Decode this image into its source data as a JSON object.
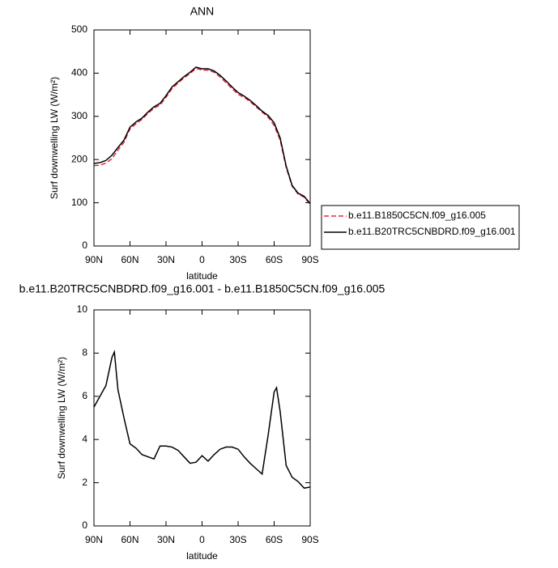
{
  "chart_data": [
    {
      "type": "line",
      "title": "ANN",
      "xlabel": "latitude",
      "ylabel": "Surf downwelling LW (W/m²)",
      "x": [
        90,
        85,
        80,
        75,
        70,
        65,
        60,
        55,
        50,
        45,
        40,
        35,
        30,
        25,
        20,
        15,
        10,
        5,
        0,
        -5,
        -10,
        -15,
        -20,
        -25,
        -30,
        -35,
        -40,
        -45,
        -50,
        -55,
        -60,
        -65,
        -70,
        -75,
        -80,
        -85,
        -90
      ],
      "series": [
        {
          "name": "b.e11.B1850C5CN.f09_g16.005",
          "color": "#e8283c",
          "linestyle": "dashed",
          "values": [
            186,
            187,
            192,
            202,
            222,
            240,
            271,
            283,
            293,
            307,
            319,
            326,
            344,
            364,
            377,
            389,
            399,
            411,
            407,
            407,
            402,
            391,
            378,
            364,
            351,
            344,
            334,
            322,
            310,
            298,
            279,
            245,
            182,
            138,
            120,
            113,
            96
          ]
        },
        {
          "name": "b.e11.B20TRC5CNBDRD.f09_g16.001",
          "color": "#000000",
          "linestyle": "solid",
          "values": [
            191,
            193,
            198,
            210,
            228,
            245,
            275,
            287,
            296,
            310,
            322,
            330,
            348,
            368,
            380,
            392,
            402,
            414,
            410,
            410,
            405,
            395,
            382,
            368,
            355,
            347,
            337,
            325,
            312,
            302,
            285,
            250,
            185,
            140,
            122,
            115,
            98
          ]
        }
      ],
      "xlim": [
        90,
        -90
      ],
      "ylim": [
        0,
        500
      ],
      "xticks": [
        {
          "value": 90,
          "label": "90N"
        },
        {
          "value": 60,
          "label": "60N"
        },
        {
          "value": 30,
          "label": "30N"
        },
        0,
        {
          "value": -30,
          "label": "30S"
        },
        {
          "value": -60,
          "label": "60S"
        },
        {
          "value": -90,
          "label": "90S"
        }
      ],
      "yticks": [
        0,
        100,
        200,
        300,
        400,
        500
      ],
      "legend": "right"
    },
    {
      "type": "line",
      "title": "b.e11.B20TRC5CNBDRD.f09_g16.001 - b.e11.B1850C5CN.f09_g16.005",
      "xlabel": "latitude",
      "ylabel": "Surf downwelling LW (W/m²)",
      "x": [
        90,
        85,
        80,
        75,
        73,
        70,
        65,
        60,
        55,
        50,
        45,
        40,
        35,
        30,
        25,
        20,
        15,
        10,
        5,
        0,
        -5,
        -10,
        -15,
        -20,
        -25,
        -30,
        -35,
        -40,
        -45,
        -50,
        -55,
        -60,
        -62,
        -65,
        -70,
        -75,
        -80,
        -85,
        -90
      ],
      "series": [
        {
          "color": "#000000",
          "linestyle": "solid",
          "values": [
            5.5,
            6.0,
            6.5,
            7.8,
            8.05,
            6.3,
            5.0,
            3.8,
            3.6,
            3.3,
            3.2,
            3.1,
            3.7,
            3.7,
            3.65,
            3.5,
            3.2,
            2.9,
            2.95,
            3.25,
            3.0,
            3.3,
            3.55,
            3.65,
            3.65,
            3.55,
            3.2,
            2.9,
            2.65,
            2.4,
            4.2,
            6.2,
            6.4,
            5.3,
            2.8,
            2.25,
            2.05,
            1.75,
            1.8
          ]
        }
      ],
      "xlim": [
        90,
        -90
      ],
      "ylim": [
        0,
        10
      ],
      "xticks": [
        {
          "value": 90,
          "label": "90N"
        },
        {
          "value": 60,
          "label": "60N"
        },
        {
          "value": 30,
          "label": "30N"
        },
        0,
        {
          "value": -30,
          "label": "30S"
        },
        {
          "value": -60,
          "label": "60S"
        },
        {
          "value": -90,
          "label": "90S"
        }
      ],
      "yticks": [
        0,
        2,
        4,
        6,
        8,
        10
      ]
    }
  ]
}
